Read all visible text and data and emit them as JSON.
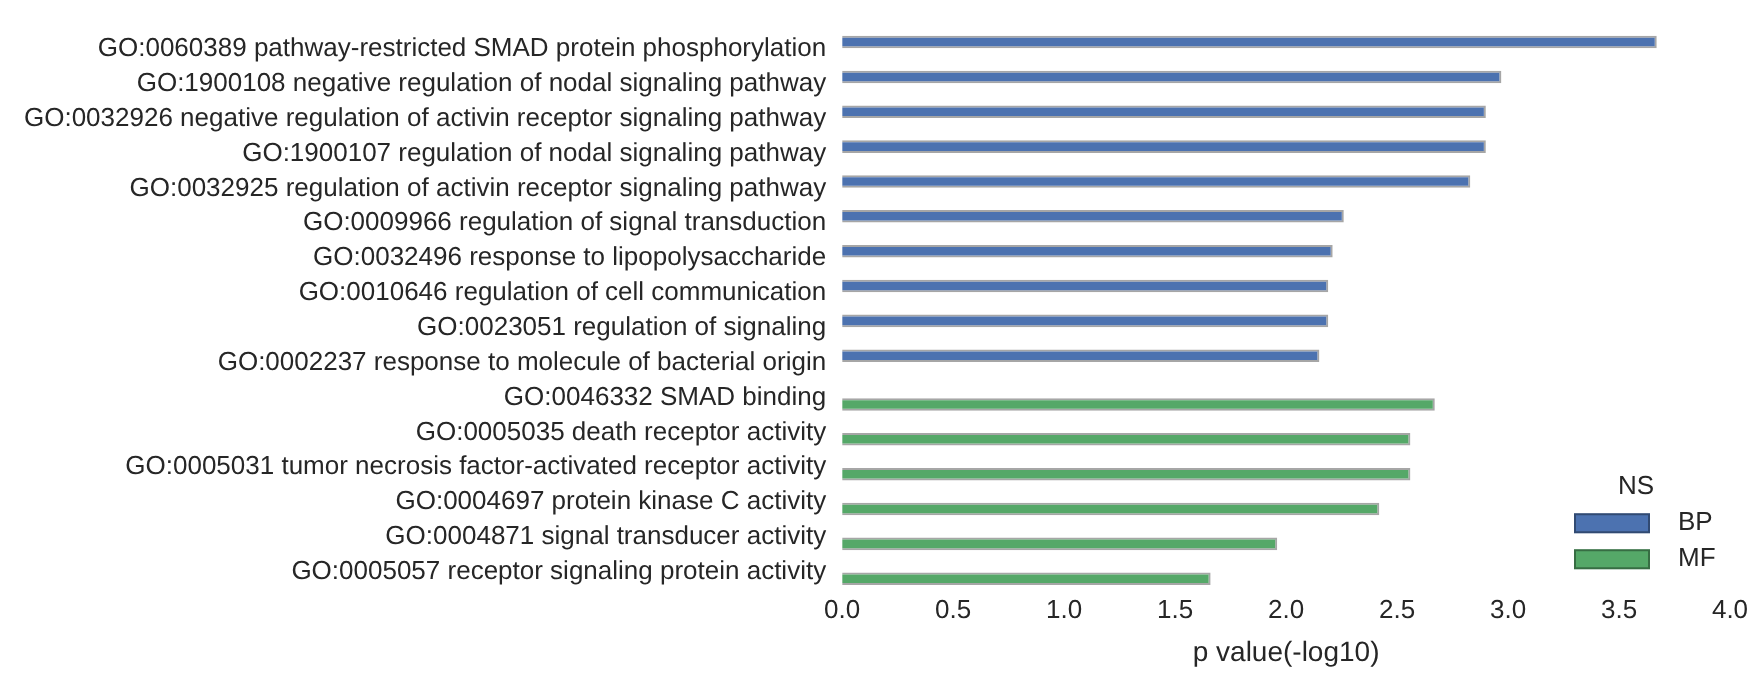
{
  "chart_data": {
    "type": "bar",
    "orientation": "horizontal",
    "xlabel": "p value(-log10)",
    "legend_title": "NS",
    "legend": "bottom right",
    "grid": false,
    "categories": [
      "GO:0060389 pathway-restricted SMAD protein phosphorylation",
      "GO:1900108 negative regulation of nodal signaling pathway",
      "GO:0032926 negative regulation of activin receptor signaling pathway",
      "GO:1900107 regulation of nodal signaling pathway",
      "GO:0032925 regulation of activin receptor signaling pathway",
      "GO:0009966 regulation of signal transduction",
      "GO:0032496 response to lipopolysaccharide",
      "GO:0010646 regulation of cell communication",
      "GO:0023051 regulation of signaling",
      "GO:0002237 response to molecule of bacterial origin",
      "GO:0046332 SMAD binding",
      "GO:0005035 death receptor activity",
      "GO:0005031 tumor necrosis factor-activated receptor activity",
      "GO:0004697 protein kinase C activity",
      "GO:0004871 signal transducer activity",
      "GO:0005057 receptor signaling protein activity"
    ],
    "series": [
      {
        "name": "BP",
        "color": "#4c72b0",
        "values": [
          3.67,
          2.97,
          2.9,
          2.9,
          2.83,
          2.26,
          2.21,
          2.19,
          2.19,
          2.15,
          null,
          null,
          null,
          null,
          null,
          null
        ]
      },
      {
        "name": "MF",
        "color": "#55a868",
        "values": [
          null,
          null,
          null,
          null,
          null,
          null,
          null,
          null,
          null,
          null,
          2.67,
          2.56,
          2.56,
          2.42,
          1.96,
          1.66
        ]
      }
    ],
    "xlim": [
      0,
      4
    ],
    "xticks": [
      {
        "value": 0,
        "label": "0.0"
      },
      {
        "value": 0.5,
        "label": "0.5"
      },
      {
        "value": 1,
        "label": "1.0"
      },
      {
        "value": 1.5,
        "label": "1.5"
      },
      {
        "value": 2,
        "label": "2.0"
      },
      {
        "value": 2.5,
        "label": "2.5"
      },
      {
        "value": 3,
        "label": "3.0"
      },
      {
        "value": 3.5,
        "label": "3.5"
      },
      {
        "value": 4,
        "label": "4.0"
      }
    ]
  }
}
